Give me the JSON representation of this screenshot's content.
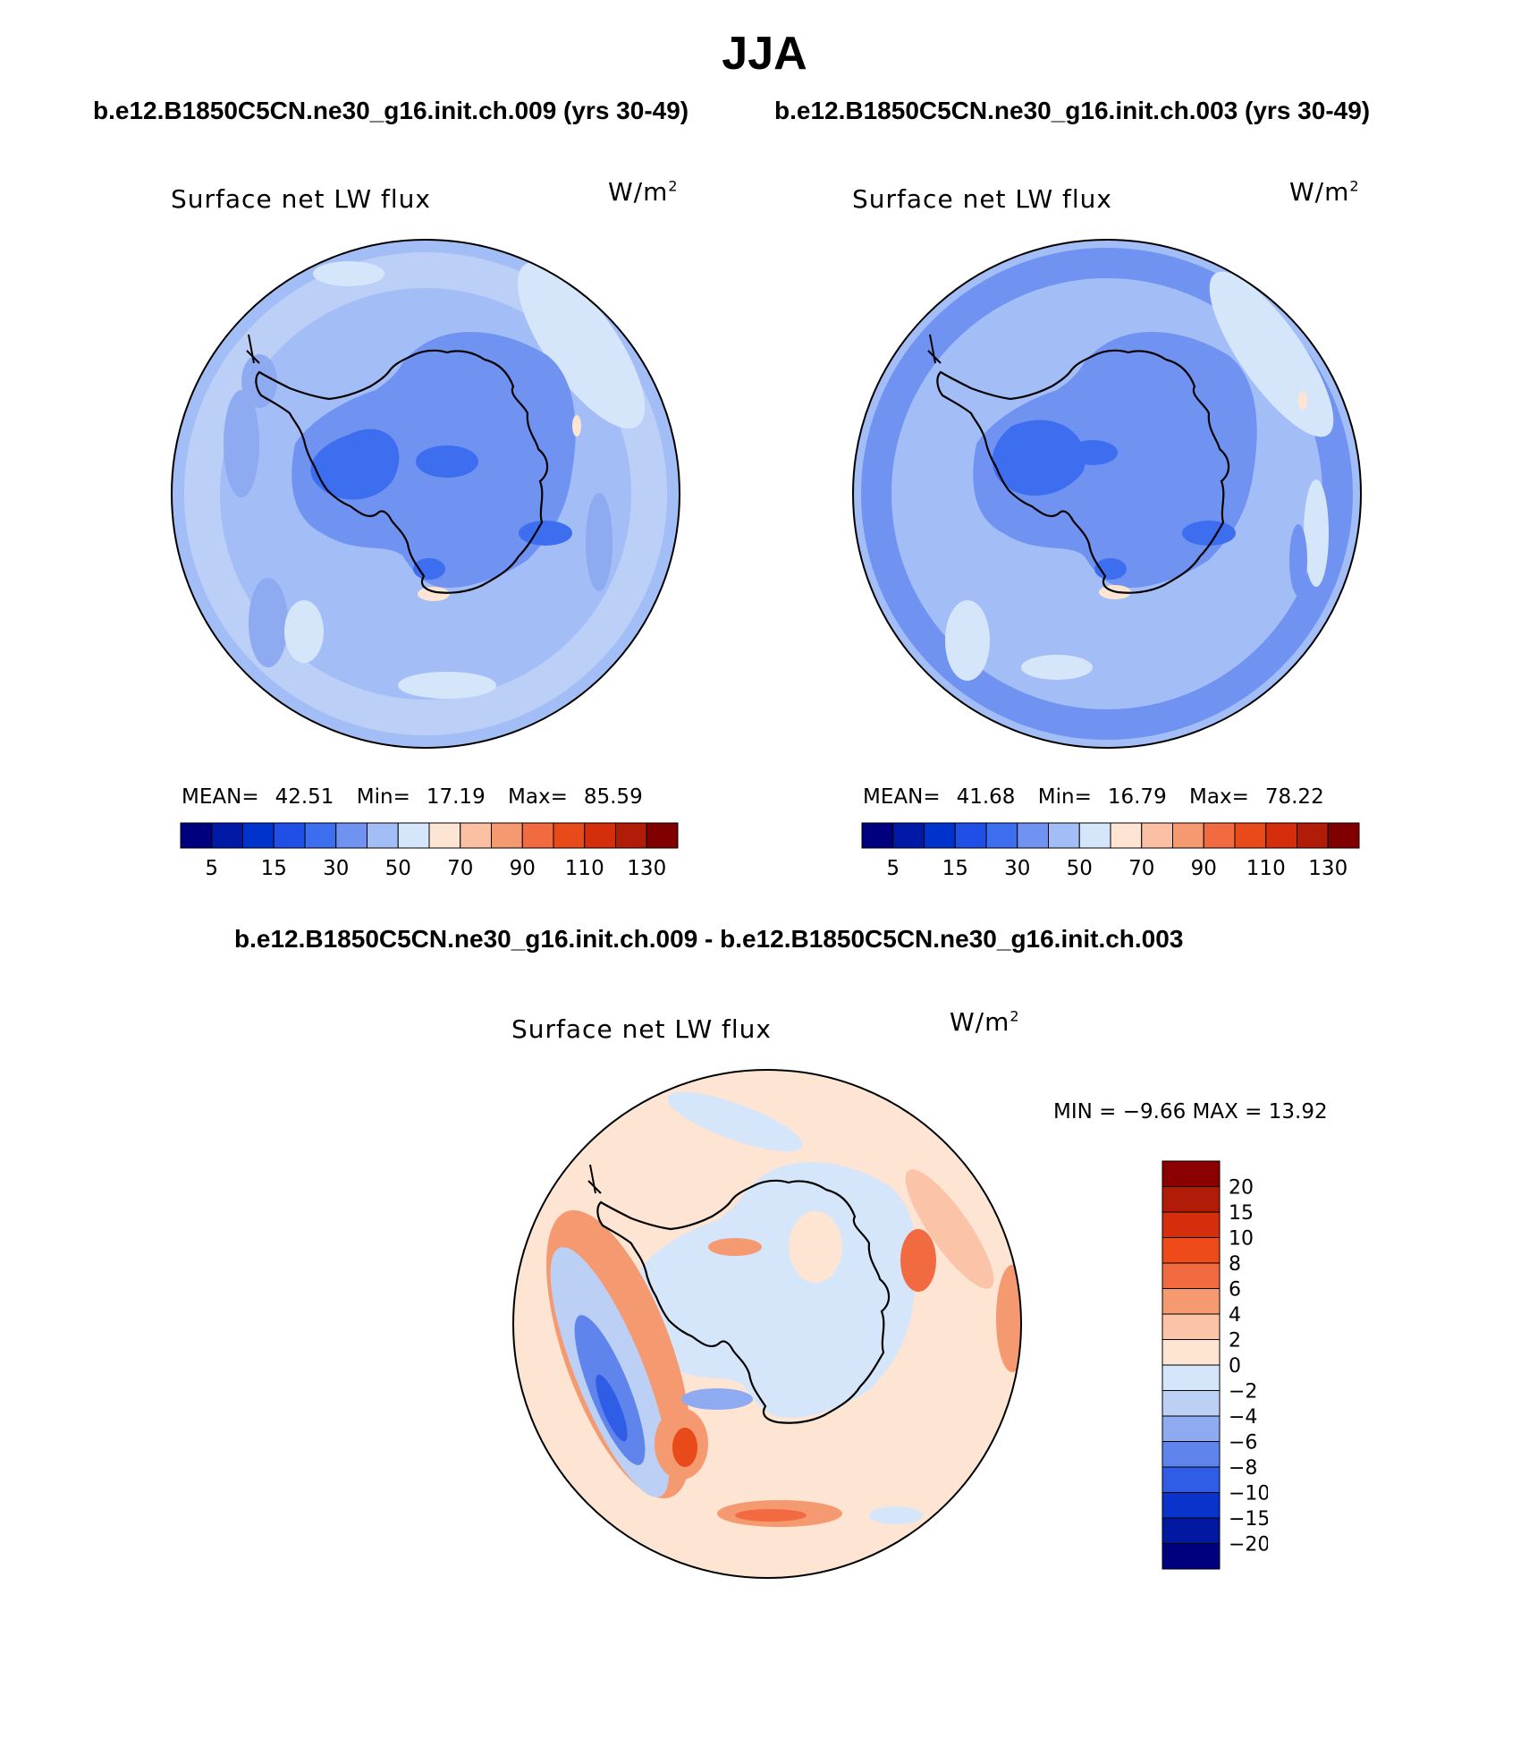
{
  "figure": {
    "season": "JJA",
    "top_titles": {
      "left": "b.e12.B1850C5CN.ne30_g16.init.ch.009 (yrs 30-49)",
      "right": "b.e12.B1850C5CN.ne30_g16.init.ch.003 (yrs 30-49)"
    },
    "diff_title": "b.e12.B1850C5CN.ne30_g16.init.ch.009 - b.e12.B1850C5CN.ne30_g16.init.ch.003"
  },
  "panels": {
    "left": {
      "variable": "Surface net LW flux",
      "units_base": "W/m",
      "units_exp": "2",
      "mean_label": "MEAN=",
      "mean": "42.51",
      "min_label": "Min=",
      "min": "17.19",
      "max_label": "Max=",
      "max": "85.59"
    },
    "right": {
      "variable": "Surface net LW flux",
      "units_base": "W/m",
      "units_exp": "2",
      "mean_label": "MEAN=",
      "mean": "41.68",
      "min_label": "Min=",
      "min": "16.79",
      "max_label": "Max=",
      "max": "78.22"
    },
    "diff": {
      "variable": "Surface net LW flux",
      "units_base": "W/m",
      "units_exp": "2",
      "minmax_text": "MIN =   −9.66 MAX =   13.92"
    }
  },
  "colorbars": {
    "absolute": {
      "levels": [
        "5",
        "15",
        "30",
        "50",
        "70",
        "90",
        "110",
        "130"
      ],
      "colors": [
        "#00007f",
        "#0019a6",
        "#0033cc",
        "#1f4fe6",
        "#3d6ef0",
        "#7093f2",
        "#a3bdf7",
        "#d6e6fa",
        "#fde4d3",
        "#fbbfa3",
        "#f59a70",
        "#f26b40",
        "#e84a1a",
        "#d42e0d",
        "#b01c08",
        "#800000"
      ]
    },
    "difference": {
      "levels": [
        "20",
        "15",
        "10",
        "8",
        "6",
        "4",
        "2",
        "0",
        "−2",
        "−4",
        "−6",
        "−8",
        "−10",
        "−15",
        "−20"
      ],
      "colors": [
        "#8b0000",
        "#b01c08",
        "#d42e0d",
        "#ee4a1a",
        "#f26b40",
        "#f59a70",
        "#fbc3a8",
        "#fde4d3",
        "#d6e6fa",
        "#bcd0f5",
        "#8eaaf0",
        "#5f84ec",
        "#2f5de6",
        "#0a33cc",
        "#0019a0",
        "#00007f"
      ]
    }
  },
  "chart_data": [
    {
      "type": "heatmap",
      "title": "Surface net LW flux",
      "subtitle": "b.e12.B1850C5CN.ne30_g16.init.ch.009 (yrs 30-49)",
      "units": "W/m2",
      "projection": "south polar stereographic",
      "mean": 42.51,
      "min": 17.19,
      "max": 85.59,
      "contour_levels": [
        5,
        10,
        15,
        20,
        30,
        40,
        50,
        60,
        70,
        80,
        90,
        100,
        110,
        120,
        130
      ]
    },
    {
      "type": "heatmap",
      "title": "Surface net LW flux",
      "subtitle": "b.e12.B1850C5CN.ne30_g16.init.ch.003 (yrs 30-49)",
      "units": "W/m2",
      "projection": "south polar stereographic",
      "mean": 41.68,
      "min": 16.79,
      "max": 78.22,
      "contour_levels": [
        5,
        10,
        15,
        20,
        30,
        40,
        50,
        60,
        70,
        80,
        90,
        100,
        110,
        120,
        130
      ]
    },
    {
      "type": "heatmap",
      "title": "Surface net LW flux",
      "subtitle": "b.e12.B1850C5CN.ne30_g16.init.ch.009 - b.e12.B1850C5CN.ne30_g16.init.ch.003",
      "units": "W/m2",
      "projection": "south polar stereographic",
      "min": -9.66,
      "max": 13.92,
      "contour_levels": [
        -20,
        -15,
        -10,
        -8,
        -6,
        -4,
        -2,
        0,
        2,
        4,
        6,
        8,
        10,
        15,
        20
      ]
    }
  ]
}
